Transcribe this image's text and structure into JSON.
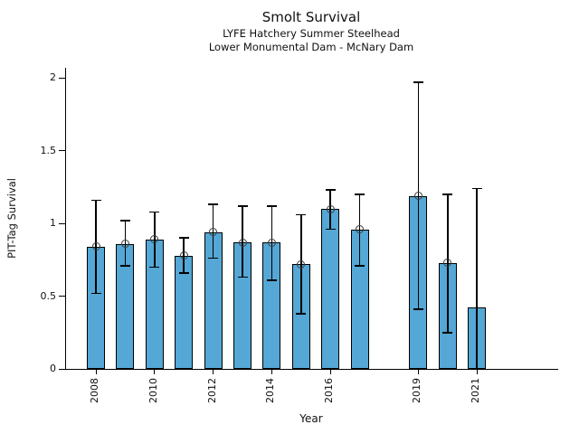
{
  "figure": {
    "title": "Smolt Survival",
    "subtitle1": "LYFE Hatchery Summer Steelhead",
    "subtitle2": "Lower Monumental Dam - McNary Dam"
  },
  "chart_data": {
    "type": "bar",
    "title": "Smolt Survival",
    "subtitle1": "LYFE Hatchery Summer Steelhead",
    "subtitle2": "Lower Monumental Dam - McNary Dam",
    "xlabel": "Year",
    "ylabel": "PIT-Tag Survival",
    "ylim": [
      0,
      2.07
    ],
    "grid": false,
    "legend": null,
    "note_missing_year": "2018 has no bar; x axis leaves a gap",
    "categories": [
      2008,
      2009,
      2010,
      2011,
      2012,
      2013,
      2014,
      2015,
      2016,
      2017,
      2019,
      2020,
      2021
    ],
    "values": [
      0.84,
      0.86,
      0.89,
      0.78,
      0.94,
      0.87,
      0.87,
      0.72,
      1.1,
      0.96,
      1.19,
      0.73,
      0.42
    ],
    "ci_low": [
      0.52,
      0.71,
      0.7,
      0.66,
      0.76,
      0.63,
      0.61,
      0.38,
      0.96,
      0.71,
      0.41,
      0.25,
      0.0
    ],
    "ci_high": [
      1.16,
      1.02,
      1.08,
      0.9,
      1.13,
      1.12,
      1.12,
      1.06,
      1.23,
      1.2,
      1.97,
      1.2,
      1.24
    ],
    "marker_shown": [
      true,
      true,
      true,
      true,
      true,
      true,
      true,
      true,
      true,
      true,
      true,
      true,
      false
    ],
    "y_ticks": [
      0,
      0.5,
      1,
      1.5,
      2
    ],
    "y_tick_labels": [
      "0",
      "0.5",
      "1",
      "1.5",
      "2"
    ],
    "x_tick_years": [
      2008,
      2010,
      2012,
      2014,
      2016,
      2019,
      2021
    ],
    "x_tick_labels": [
      "2008",
      "2010",
      "2012",
      "2014",
      "2016",
      "2019",
      "2021"
    ],
    "bar_color": "#55a7d5",
    "bar_edge_color": "#000000",
    "error_color": "#000000",
    "marker_edge_color": "#3d3d3d"
  }
}
